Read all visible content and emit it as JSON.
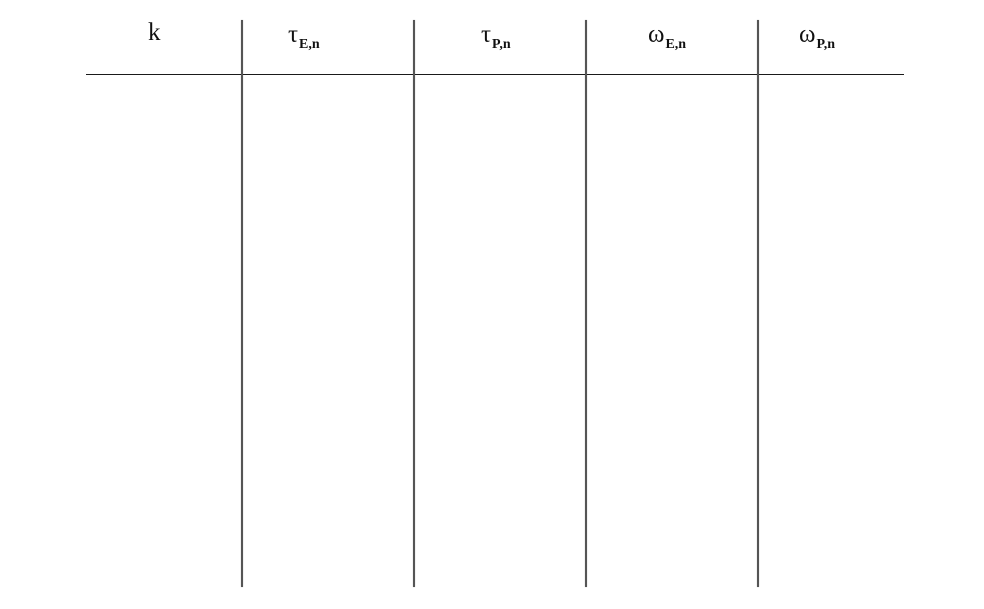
{
  "table": {
    "columns": [
      {
        "symbol": "k",
        "subscript": ""
      },
      {
        "symbol": "τ",
        "subscript": "E,n"
      },
      {
        "symbol": "τ",
        "subscript": "P,n"
      },
      {
        "symbol": "ω",
        "subscript": "E,n"
      },
      {
        "symbol": "ω",
        "subscript": "P,n"
      }
    ],
    "rows": []
  }
}
